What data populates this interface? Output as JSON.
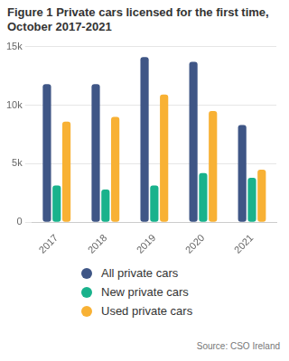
{
  "chart_data": {
    "type": "bar",
    "title": "Figure 1 Private cars licensed for the first time, October 2017-2021",
    "source": "Source: CSO Ireland",
    "categories": [
      "2017",
      "2018",
      "2019",
      "2020",
      "2021"
    ],
    "series": [
      {
        "name": "All private cars",
        "color": "#3f5686",
        "values": [
          11800,
          11800,
          14100,
          13700,
          8300
        ]
      },
      {
        "name": "New private cars",
        "color": "#19b28c",
        "values": [
          3150,
          2800,
          3150,
          4200,
          3800
        ]
      },
      {
        "name": "Used private cars",
        "color": "#f8b134",
        "values": [
          8600,
          9000,
          10900,
          9500,
          4500
        ]
      }
    ],
    "ylim": [
      0,
      15000
    ],
    "yticks": [
      0,
      {
        "value": 5000,
        "label": "5k"
      },
      {
        "value": 10000,
        "label": "10k"
      },
      {
        "value": 15000,
        "label": "15k"
      }
    ],
    "grid": true,
    "legend": "bottom"
  }
}
